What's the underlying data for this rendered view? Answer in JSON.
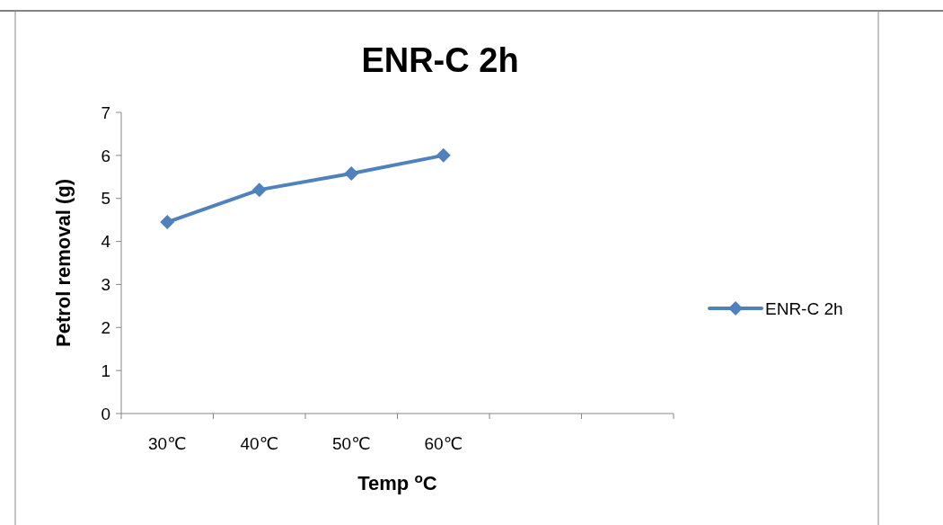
{
  "chart_data": {
    "type": "line",
    "title": "ENR-C 2h",
    "xlabel": "Temp $^{o}$C",
    "ylabel": "Petrol removal (g)",
    "categories": [
      "30℃",
      "40℃",
      "50℃",
      "60℃",
      null,
      null
    ],
    "series": [
      {
        "name": "ENR-C 2h",
        "color": "#4f81bd",
        "values": [
          4.45,
          5.2,
          5.58,
          6.0,
          null,
          null
        ]
      }
    ],
    "ylim": [
      0,
      7
    ],
    "yticks": [
      0,
      1,
      2,
      3,
      4,
      5,
      6,
      7
    ],
    "grid": false,
    "legend": "right",
    "marker": "diamond",
    "line_style": "solid"
  }
}
